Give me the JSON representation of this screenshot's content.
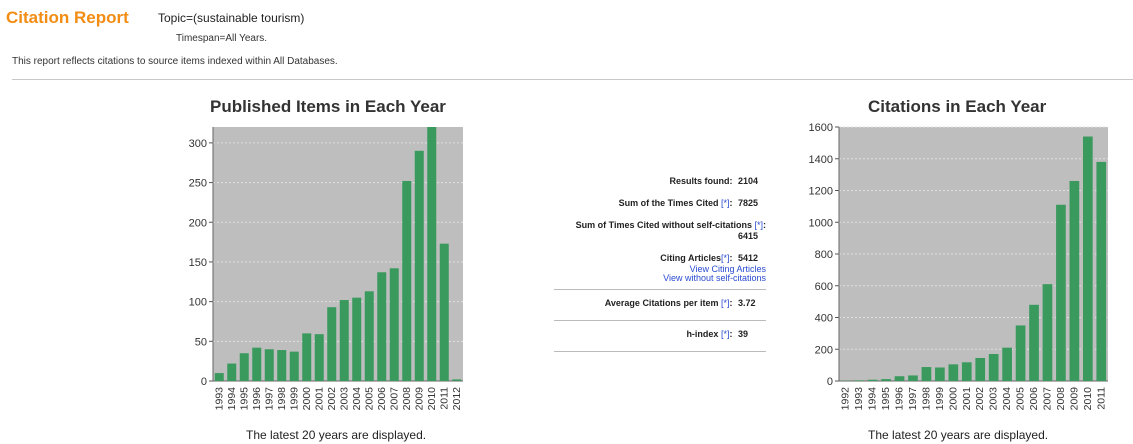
{
  "header": {
    "title": "Citation Report",
    "topic": "Topic=(sustainable tourism)",
    "timespan": "Timespan=All Years.",
    "note": "This report reflects citations to source items indexed within All Databases."
  },
  "stats": {
    "results_found_label": "Results found:",
    "results_found": "2104",
    "sum_cited_label": "Sum of the Times Cited",
    "sum_cited": "7825",
    "sum_no_self_label": "Sum of Times Cited without self-citations",
    "sum_no_self": "6415",
    "citing_label": "Citing Articles",
    "citing": "5412",
    "view_citing": "View Citing Articles",
    "view_no_self": "View without self-citations",
    "avg_label": "Average Citations per item",
    "avg": "3.72",
    "hindex_label": "h-index",
    "hindex": "39",
    "star": "[*]"
  },
  "colors": {
    "accent": "#f28c13",
    "bar": "#3a9a5e",
    "plot_bg": "#bebebe",
    "link": "#2a4bd0"
  },
  "chart_data": [
    {
      "type": "bar",
      "title": "Published Items in Each Year",
      "footnote": "The latest 20 years are displayed.",
      "categories": [
        "1993",
        "1994",
        "1995",
        "1996",
        "1997",
        "1998",
        "1999",
        "2000",
        "2001",
        "2002",
        "2003",
        "2004",
        "2005",
        "2006",
        "2007",
        "2008",
        "2009",
        "2010",
        "2011",
        "2012"
      ],
      "values": [
        10,
        22,
        35,
        42,
        40,
        39,
        37,
        60,
        59,
        93,
        102,
        105,
        113,
        137,
        142,
        252,
        290,
        320,
        173,
        2
      ],
      "ylim": [
        0,
        320
      ],
      "yticks": [
        0,
        50,
        100,
        150,
        200,
        250,
        300
      ],
      "grid": true
    },
    {
      "type": "bar",
      "title": "Citations in Each Year",
      "footnote": "The latest 20 years are displayed.",
      "categories": [
        "1992",
        "1993",
        "1994",
        "1995",
        "1996",
        "1997",
        "1998",
        "1999",
        "2000",
        "2001",
        "2002",
        "2003",
        "2004",
        "2005",
        "2006",
        "2007",
        "2008",
        "2009",
        "2010",
        "2011"
      ],
      "values": [
        2,
        4,
        8,
        12,
        30,
        35,
        88,
        85,
        105,
        118,
        145,
        170,
        210,
        350,
        480,
        610,
        1110,
        1260,
        1540,
        1380
      ],
      "ylim": [
        0,
        1600
      ],
      "yticks": [
        0,
        200,
        400,
        600,
        800,
        1000,
        1200,
        1400,
        1600
      ],
      "grid": true
    }
  ]
}
